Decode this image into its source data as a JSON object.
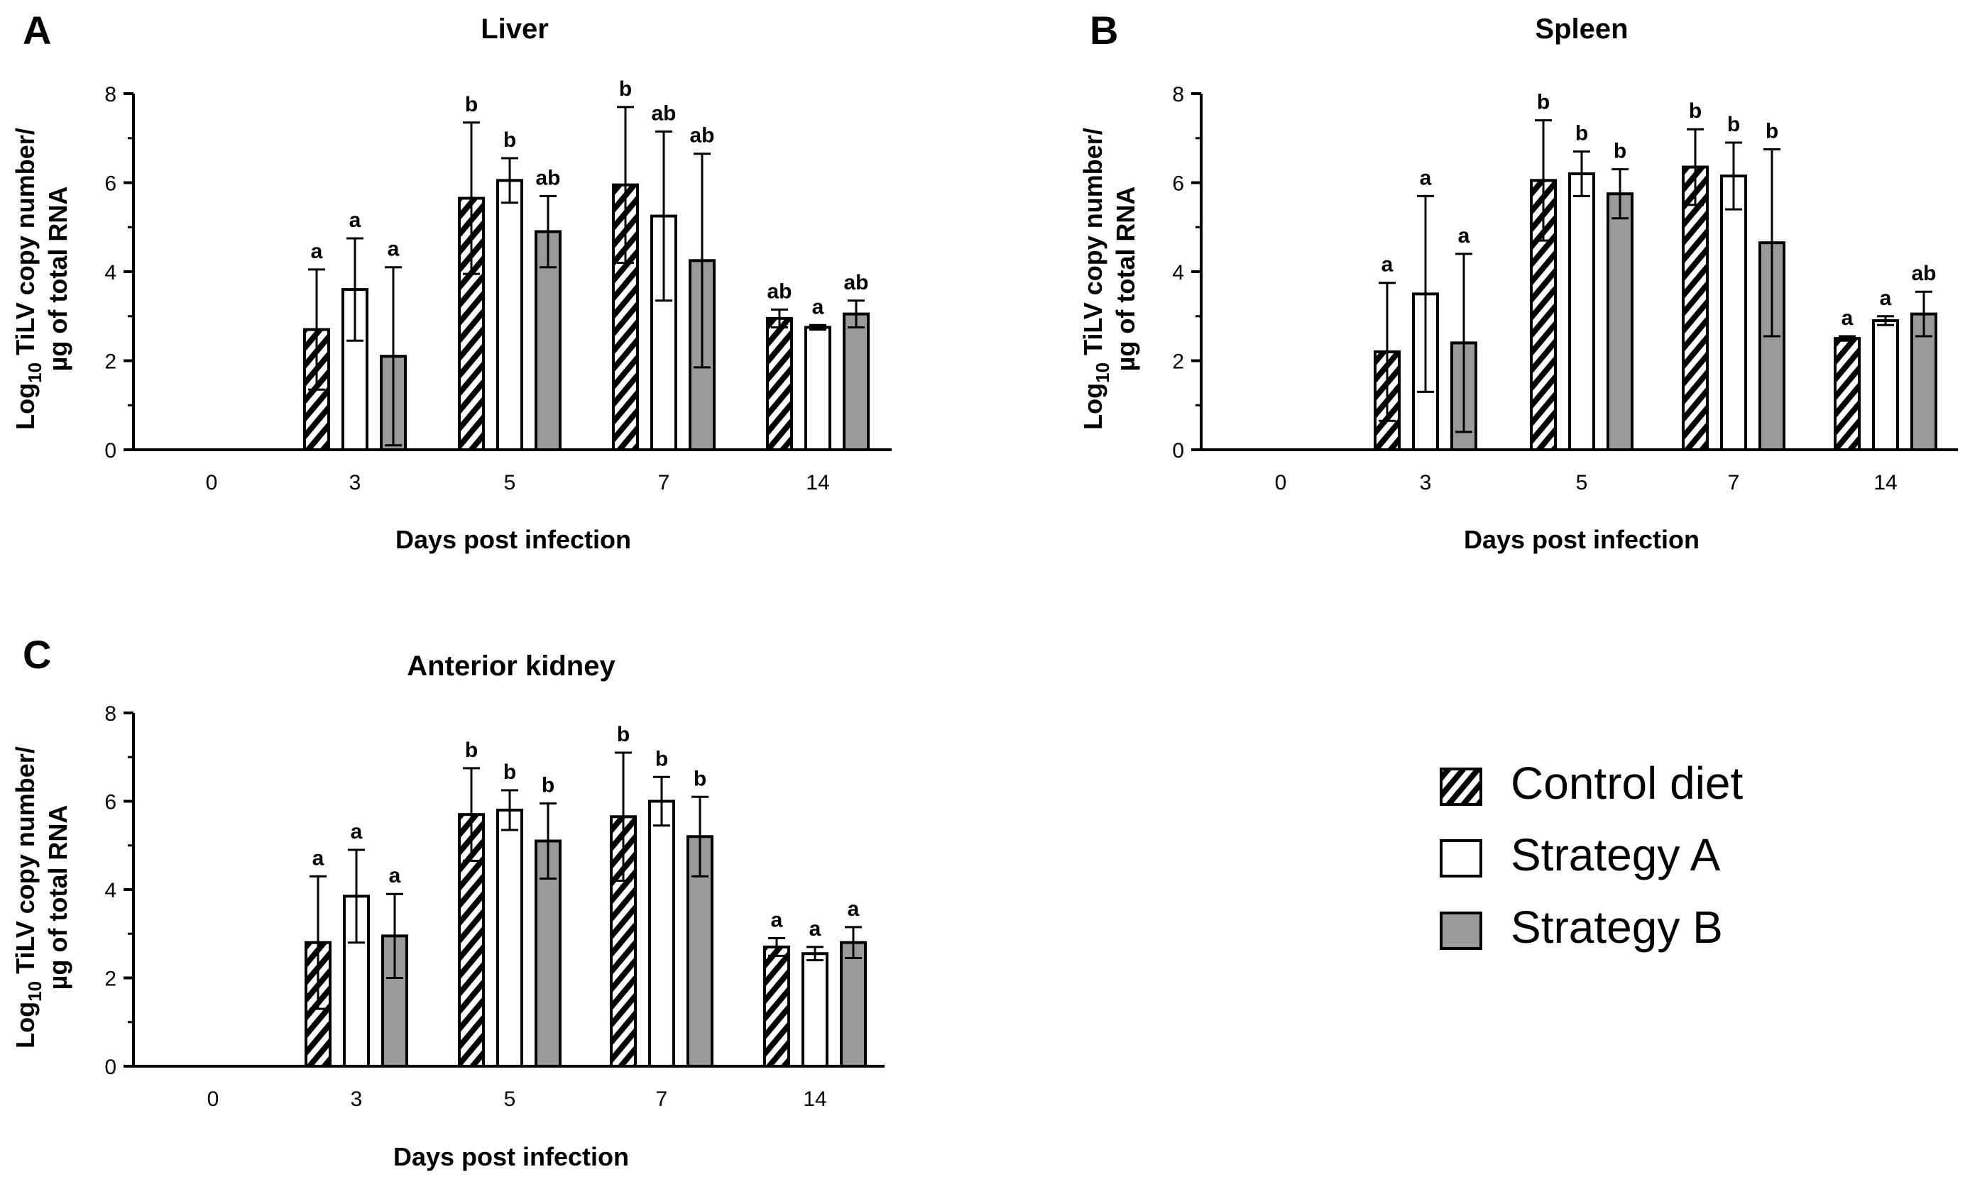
{
  "legend": [
    {
      "label": "Control diet",
      "fill": "hatch"
    },
    {
      "label": "Strategy A",
      "fill": "#ffffff"
    },
    {
      "label": "Strategy B",
      "fill": "#9a9a9a"
    }
  ],
  "colors": {
    "strategy_a": "#ffffff",
    "strategy_b": "#9a9a9a",
    "axis": "#000000",
    "hatch": "#000000"
  },
  "chart_data": [
    {
      "panel_letter": "A",
      "type": "bar",
      "title": "Liver",
      "xlabel": "Days post infection",
      "ylabel_prefix": "Log",
      "ylabel_sub": "10",
      "ylabel_rest": " TiLV copy number/",
      "ylabel_line2": "µg of total RNA",
      "ylim": [
        0,
        8
      ],
      "yticks": [
        0,
        2,
        4,
        6,
        8
      ],
      "categories": [
        "0",
        "3",
        "5",
        "7",
        "14"
      ],
      "series": [
        {
          "name": "Control diet",
          "values": [
            0,
            2.7,
            5.65,
            5.95,
            2.95
          ],
          "err": [
            0,
            1.35,
            1.7,
            1.75,
            0.2
          ],
          "letters": [
            "",
            "a",
            "b",
            "b",
            "ab"
          ]
        },
        {
          "name": "Strategy A",
          "values": [
            0,
            3.6,
            6.05,
            5.25,
            2.75
          ],
          "err": [
            0,
            1.15,
            0.5,
            1.9,
            0.05
          ],
          "letters": [
            "",
            "a",
            "b",
            "ab",
            "a"
          ]
        },
        {
          "name": "Strategy B",
          "values": [
            0,
            2.1,
            4.9,
            4.25,
            3.05
          ],
          "err": [
            0,
            2.0,
            0.8,
            2.4,
            0.3
          ],
          "letters": [
            "",
            "a",
            "ab",
            "ab",
            "ab"
          ]
        }
      ]
    },
    {
      "panel_letter": "B",
      "type": "bar",
      "title": "Spleen",
      "xlabel": "Days post infection",
      "ylabel_prefix": "Log",
      "ylabel_sub": "10",
      "ylabel_rest": " TiLV copy number/",
      "ylabel_line2": "µg of total RNA",
      "ylim": [
        0,
        8
      ],
      "yticks": [
        0,
        2,
        4,
        6,
        8
      ],
      "categories": [
        "0",
        "3",
        "5",
        "7",
        "14"
      ],
      "series": [
        {
          "name": "Control diet",
          "values": [
            0,
            2.2,
            6.05,
            6.35,
            2.5
          ],
          "err": [
            0,
            1.55,
            1.35,
            0.85,
            0.05
          ],
          "letters": [
            "",
            "a",
            "b",
            "b",
            "a"
          ]
        },
        {
          "name": "Strategy A",
          "values": [
            0,
            3.5,
            6.2,
            6.15,
            2.9
          ],
          "err": [
            0,
            2.2,
            0.5,
            0.75,
            0.1
          ],
          "letters": [
            "",
            "a",
            "b",
            "b",
            "a"
          ]
        },
        {
          "name": "Strategy B",
          "values": [
            0,
            2.4,
            5.75,
            4.65,
            3.05
          ],
          "err": [
            0,
            2.0,
            0.55,
            2.1,
            0.5
          ],
          "letters": [
            "",
            "a",
            "b",
            "b",
            "ab"
          ]
        }
      ]
    },
    {
      "panel_letter": "C",
      "type": "bar",
      "title": "Anterior kidney",
      "xlabel": "Days post infection",
      "ylabel_prefix": "Log",
      "ylabel_sub": "10",
      "ylabel_rest": " TiLV copy number/",
      "ylabel_line2": "µg of total RNA",
      "ylim": [
        0,
        8
      ],
      "yticks": [
        0,
        2,
        4,
        6,
        8
      ],
      "categories": [
        "0",
        "3",
        "5",
        "7",
        "14"
      ],
      "series": [
        {
          "name": "Control diet",
          "values": [
            0,
            2.8,
            5.7,
            5.65,
            2.7
          ],
          "err": [
            0,
            1.5,
            1.05,
            1.45,
            0.2
          ],
          "letters": [
            "",
            "a",
            "b",
            "b",
            "a"
          ]
        },
        {
          "name": "Strategy A",
          "values": [
            0,
            3.85,
            5.8,
            6.0,
            2.55
          ],
          "err": [
            0,
            1.05,
            0.45,
            0.55,
            0.15
          ],
          "letters": [
            "",
            "a",
            "b",
            "b",
            "a"
          ]
        },
        {
          "name": "Strategy B",
          "values": [
            0,
            2.95,
            5.1,
            5.2,
            2.8
          ],
          "err": [
            0,
            0.95,
            0.85,
            0.9,
            0.35
          ],
          "letters": [
            "",
            "a",
            "b",
            "b",
            "a"
          ]
        }
      ]
    }
  ]
}
